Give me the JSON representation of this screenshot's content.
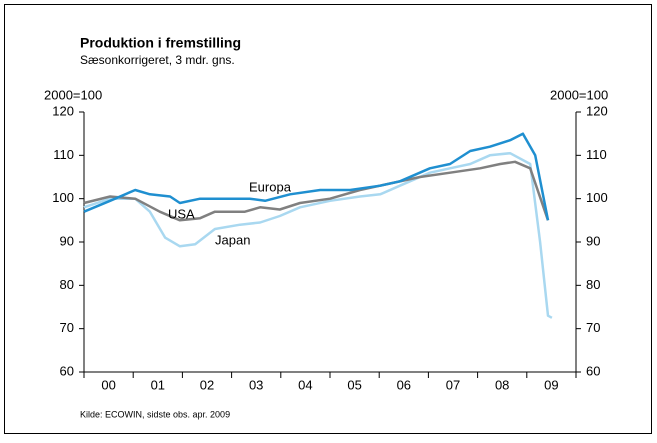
{
  "chart_data": {
    "type": "line",
    "title": "Produktion i fremstilling",
    "subtitle": "Sæsonkorrigeret, 3 mdr. gns.",
    "ylabel": "2000=100",
    "y2label": "2000=100",
    "source": "Kilde: ECOWIN, sidste obs. apr. 2009",
    "xlim": [
      0,
      10
    ],
    "xticks": [
      {
        "value": 0.5,
        "label": "00"
      },
      {
        "value": 1.5,
        "label": "01"
      },
      {
        "value": 2.5,
        "label": "02"
      },
      {
        "value": 3.5,
        "label": "03"
      },
      {
        "value": 4.5,
        "label": "04"
      },
      {
        "value": 5.5,
        "label": "05"
      },
      {
        "value": 6.5,
        "label": "06"
      },
      {
        "value": 7.5,
        "label": "07"
      },
      {
        "value": 8.5,
        "label": "08"
      },
      {
        "value": 9.5,
        "label": "09"
      }
    ],
    "ylim": [
      60,
      120
    ],
    "yticks": [
      60,
      70,
      80,
      90,
      100,
      110,
      120
    ],
    "y2lim": [
      60,
      120
    ],
    "y2ticks": [
      60,
      70,
      80,
      90,
      100,
      110,
      120
    ],
    "annotations": [
      "Europa",
      "USA",
      "Japan"
    ],
    "series": [
      {
        "name": "Japan",
        "color": "#a9d8f0",
        "x": [
          0,
          0.53,
          1.04,
          1.34,
          1.65,
          1.95,
          2.26,
          2.66,
          3.17,
          3.58,
          3.98,
          4.39,
          5.0,
          5.61,
          6.02,
          6.42,
          7.03,
          7.44,
          7.85,
          8.25,
          8.66,
          9.07,
          9.27,
          9.43,
          9.51
        ],
        "values": [
          98,
          100,
          100,
          97,
          91,
          89,
          89.5,
          93,
          94,
          94.5,
          96,
          98,
          99.5,
          100.5,
          101,
          103,
          106,
          107,
          108,
          110,
          110.5,
          108,
          90,
          73,
          72.5
        ]
      },
      {
        "name": "USA",
        "color": "#808080",
        "x": [
          0,
          0.53,
          1.04,
          1.54,
          1.95,
          2.36,
          2.66,
          3.27,
          3.58,
          3.98,
          4.39,
          5.0,
          5.61,
          6.22,
          6.83,
          7.44,
          8.05,
          8.46,
          8.76,
          9.07,
          9.43
        ],
        "values": [
          99,
          100.5,
          100,
          97,
          95,
          95.5,
          97,
          97,
          98,
          97.5,
          99,
          100,
          102,
          103.5,
          105,
          106,
          107,
          108,
          108.5,
          107,
          95
        ]
      },
      {
        "name": "Europa",
        "color": "#1f8fd0",
        "x": [
          0,
          0.53,
          1.04,
          1.34,
          1.75,
          1.95,
          2.36,
          2.97,
          3.37,
          3.68,
          4.19,
          4.8,
          5.41,
          6.02,
          6.42,
          7.03,
          7.44,
          7.85,
          8.25,
          8.66,
          8.92,
          9.17,
          9.43
        ],
        "values": [
          97,
          99.5,
          102,
          101,
          100.5,
          99,
          100,
          100,
          100,
          99.5,
          101,
          102,
          102,
          103,
          104,
          107,
          108,
          111,
          112,
          113.5,
          115,
          110,
          95
        ]
      }
    ]
  }
}
